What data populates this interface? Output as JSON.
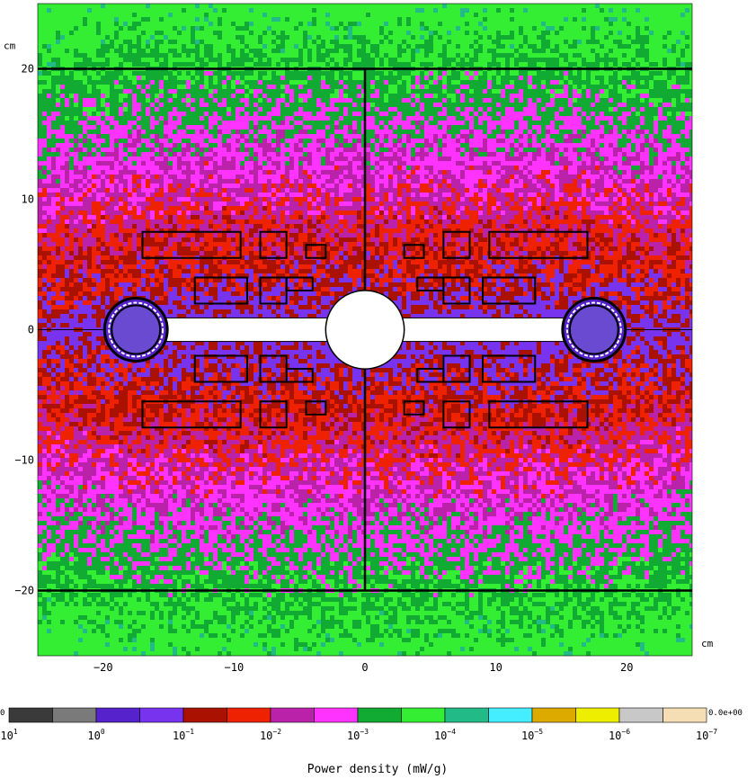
{
  "chart_data": {
    "type": "heatmap",
    "title": "",
    "xlabel": "",
    "ylabel": "",
    "x_unit": "cm",
    "y_unit": "cm",
    "xlim": [
      -25,
      25
    ],
    "ylim": [
      -25,
      25
    ],
    "x_ticks": [
      -20,
      -10,
      0,
      10,
      20
    ],
    "y_ticks": [
      -20,
      -10,
      0,
      10,
      20
    ],
    "x_tick_labels": [
      "−20",
      "−10",
      "0",
      "10",
      "20"
    ],
    "y_tick_labels": [
      "−20",
      "−10",
      "0",
      "10",
      "20"
    ],
    "reference_lines": {
      "horizontal_y": [
        20,
        -20,
        0
      ],
      "vertical_x": [
        0
      ]
    },
    "field_description": "log-scale power density, highest near y=0 (red/purple band), decaying to green at |y| > 15",
    "structures": {
      "central_disc": {
        "x": 0,
        "y": 0,
        "r": 3
      },
      "end_rings": [
        {
          "x": -17.5,
          "y": 0,
          "r": 2.4
        },
        {
          "x": 17.5,
          "y": 0,
          "r": 2.4
        }
      ],
      "arm_bar": {
        "x": [
          -17,
          17
        ],
        "y": [
          -0.9,
          0.9
        ]
      },
      "rectangles": [
        {
          "x": [
            -17,
            -9.5
          ],
          "y": [
            5.5,
            7.5
          ]
        },
        {
          "x": [
            -8,
            -6
          ],
          "y": [
            5.5,
            7.5
          ]
        },
        {
          "x": [
            -4.5,
            -3
          ],
          "y": [
            5.5,
            6.5
          ]
        },
        {
          "x": [
            -13,
            -9
          ],
          "y": [
            2,
            4
          ]
        },
        {
          "x": [
            -8,
            -6
          ],
          "y": [
            2,
            4
          ]
        },
        {
          "x": [
            -6,
            -4
          ],
          "y": [
            3,
            4
          ]
        },
        {
          "x": [
            -13,
            -9
          ],
          "y": [
            -4,
            -2
          ]
        },
        {
          "x": [
            -8,
            -6
          ],
          "y": [
            -4,
            -2
          ]
        },
        {
          "x": [
            -6,
            -4
          ],
          "y": [
            -4,
            -3
          ]
        },
        {
          "x": [
            -17,
            -9.5
          ],
          "y": [
            -7.5,
            -5.5
          ]
        },
        {
          "x": [
            -8,
            -6
          ],
          "y": [
            -7.5,
            -5.5
          ]
        },
        {
          "x": [
            -4.5,
            -3
          ],
          "y": [
            -6.5,
            -5.5
          ]
        }
      ]
    },
    "colorbar": {
      "label": "Power density (mW/g)",
      "bands": [
        "#3a3a3a",
        "#7a7a7a",
        "#5522cc",
        "#7733ee",
        "#aa1100",
        "#ee2200",
        "#bb22aa",
        "#ff33ff",
        "#11aa33",
        "#33ee33",
        "#22bb88",
        "#44eeff",
        "#ddaa00",
        "#eeee00",
        "#c8c8c8",
        "#f5deb3"
      ],
      "tick_base": "10",
      "tick_exponents": [
        "1",
        "0",
        "−1",
        "−2",
        "−3",
        "−4",
        "−5",
        "−6",
        "−7"
      ],
      "left_end_label": "0",
      "right_end_label": "0.0e+00"
    }
  }
}
